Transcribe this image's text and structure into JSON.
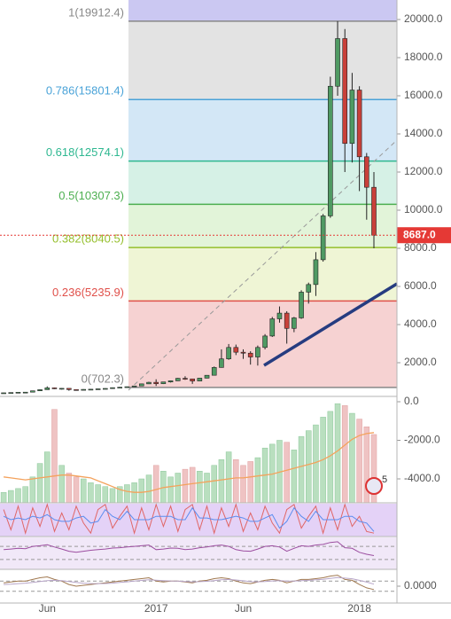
{
  "chart_data": [
    {
      "type": "candlestick",
      "categories": [
        null,
        null,
        null,
        null,
        null,
        null,
        "Jun",
        null,
        null,
        null,
        null,
        null,
        null,
        null,
        null,
        null,
        null,
        null,
        null,
        null,
        null,
        "2017",
        null,
        null,
        null,
        null,
        null,
        null,
        null,
        null,
        null,
        null,
        null,
        "Jun",
        null,
        null,
        null,
        null,
        null,
        null,
        null,
        null,
        null,
        null,
        null,
        null,
        null,
        null,
        null,
        "2018",
        null,
        null
      ],
      "open": [
        415,
        420,
        435,
        450,
        455,
        525,
        585,
        680,
        650,
        655,
        590,
        575,
        600,
        610,
        630,
        650,
        690,
        715,
        740,
        780,
        890,
        970,
        900,
        990,
        1050,
        1180,
        1150,
        1040,
        1190,
        1340,
        1750,
        2200,
        2800,
        2550,
        2500,
        2300,
        2800,
        3400,
        4300,
        4600,
        3800,
        4350,
        5700,
        6100,
        7400,
        9700,
        16500,
        19000,
        13500,
        16300,
        12800,
        11200
      ],
      "high": [
        425,
        440,
        455,
        460,
        530,
        600,
        760,
        700,
        670,
        660,
        600,
        610,
        620,
        640,
        660,
        700,
        730,
        750,
        790,
        900,
        1000,
        1130,
        1000,
        1060,
        1200,
        1290,
        1160,
        1200,
        1350,
        1800,
        2700,
        2980,
        2950,
        2700,
        2600,
        2900,
        3500,
        4400,
        4950,
        4700,
        4400,
        5800,
        6200,
        7800,
        9800,
        17000,
        19912.4,
        19500,
        17200,
        16500,
        13000,
        12000
      ],
      "low": [
        410,
        415,
        430,
        440,
        450,
        520,
        580,
        620,
        590,
        530,
        560,
        570,
        590,
        600,
        620,
        640,
        680,
        702.3,
        730,
        770,
        880,
        780,
        880,
        960,
        1040,
        1100,
        890,
        1030,
        1180,
        1330,
        1740,
        2150,
        2400,
        2200,
        1900,
        1850,
        2700,
        3350,
        4100,
        3000,
        3600,
        4300,
        5100,
        5500,
        7300,
        9600,
        16000,
        12000,
        12500,
        11000,
        9500,
        8000
      ],
      "close": [
        420,
        435,
        450,
        455,
        525,
        585,
        680,
        650,
        655,
        590,
        575,
        600,
        610,
        630,
        650,
        690,
        715,
        740,
        780,
        890,
        970,
        900,
        990,
        1050,
        1180,
        1150,
        1040,
        1190,
        1340,
        1750,
        2200,
        2800,
        2550,
        2500,
        2300,
        2800,
        3400,
        4300,
        4600,
        3800,
        4350,
        5700,
        6100,
        7400,
        9700,
        16500,
        19000,
        13500,
        16300,
        12800,
        11200,
        8687
      ],
      "up_color": "#4f9a63",
      "down_color": "#c9403a",
      "ylim": [
        232,
        21023
      ],
      "yticks": [
        {
          "value": 2000,
          "label": "2000.0"
        },
        {
          "value": 4000,
          "label": "4000.0"
        },
        {
          "value": 6000,
          "label": "6000.0"
        },
        {
          "value": 8000,
          "label": "8000.0"
        },
        {
          "value": 10000,
          "label": "10000.0"
        },
        {
          "value": 12000,
          "label": "12000.0"
        },
        {
          "value": 14000,
          "label": "14000.0"
        },
        {
          "value": 16000,
          "label": "16000.0"
        },
        {
          "value": 18000,
          "label": "18000.0"
        },
        {
          "value": 20000,
          "label": "20000.0"
        }
      ],
      "last_price": {
        "value": 8687,
        "label": "8687.0",
        "color": "#e53935"
      },
      "fib_above_fill": "#cbc8f2",
      "fib": [
        {
          "label": "1(19912.4)",
          "value": 19912.4,
          "color": "#888888",
          "fill": "#e3e3e3"
        },
        {
          "label": "0.786(15801.4)",
          "value": 15801.4,
          "color": "#4aa3d8",
          "fill": "#d3e7f6"
        },
        {
          "label": "0.618(12574.1)",
          "value": 12574.1,
          "color": "#2fb891",
          "fill": "#d6f1e6"
        },
        {
          "label": "0.5(10307.3)",
          "value": 10307.3,
          "color": "#4caf50",
          "fill": "#e2f4d9"
        },
        {
          "label": "0.382(8040.5)",
          "value": 8040.5,
          "color": "#95bf2c",
          "fill": "#eff5d5"
        },
        {
          "label": "0.236(5235.9)",
          "value": 5235.9,
          "color": "#e0504a",
          "fill": "#f6d2d2"
        },
        {
          "label": "0(702.3)",
          "value": 702.3,
          "color": "#888888",
          "fill": null
        }
      ]
    },
    {
      "type": "bar",
      "values": [
        -4700,
        -4600,
        -4500,
        -4400,
        -3900,
        -3200,
        -2600,
        -400,
        -3300,
        -3700,
        -3900,
        -4000,
        -4200,
        -4300,
        -4400,
        -4500,
        -4400,
        -4300,
        -4200,
        -4000,
        -3800,
        -3300,
        -3600,
        -3900,
        -3700,
        -3500,
        -3400,
        -3600,
        -3700,
        -3300,
        -3000,
        -2600,
        -3000,
        -3300,
        -3100,
        -2900,
        -2400,
        -2200,
        -2000,
        -2100,
        -2500,
        -1800,
        -1500,
        -1200,
        -800,
        -500,
        -100,
        -200,
        -600,
        -900,
        -1300,
        -1700
      ],
      "line": {
        "color": "#f4a25c",
        "values": [
          -3900,
          -3950,
          -4000,
          -4050,
          -4000,
          -3950,
          -3900,
          -3850,
          -3800,
          -3800,
          -3850,
          -3900,
          -3950,
          -4100,
          -4250,
          -4400,
          -4550,
          -4650,
          -4700,
          -4700,
          -4650,
          -4550,
          -4450,
          -4400,
          -4350,
          -4300,
          -4250,
          -4200,
          -4150,
          -4100,
          -4050,
          -4000,
          -3950,
          -3950,
          -3900,
          -3850,
          -3800,
          -3750,
          -3650,
          -3550,
          -3450,
          -3350,
          -3250,
          -3150,
          -3000,
          -2800,
          -2550,
          -2250,
          -1950,
          -1750,
          -1650,
          -1600
        ]
      },
      "up_color": "#b9dfbf",
      "down_color": "#efc3c3",
      "ylim": [
        -5241,
        276
      ],
      "yticks": [
        {
          "value": 0,
          "label": "0.0"
        },
        {
          "value": -2000,
          "label": "-2000.0"
        },
        {
          "value": -4000,
          "label": "-4000.0"
        }
      ],
      "badge": "5"
    },
    {
      "type": "line",
      "background": "#e4d2f7",
      "ylim": [
        0,
        100
      ],
      "series": [
        {
          "color": "#e06666",
          "values": [
            80,
            20,
            90,
            10,
            85,
            30,
            95,
            15,
            70,
            20,
            90,
            40,
            10,
            80,
            95,
            25,
            60,
            90,
            10,
            85,
            20,
            95,
            30,
            90,
            15,
            80,
            95,
            20,
            90,
            10,
            85,
            30,
            95,
            15,
            70,
            20,
            90,
            40,
            10,
            80,
            95,
            25,
            60,
            90,
            10,
            85,
            20,
            95,
            30,
            60,
            15,
            10
          ]
        },
        {
          "color": "#5b8def",
          "values": [
            60,
            50,
            55,
            50,
            60,
            55,
            65,
            50,
            45,
            45,
            55,
            60,
            40,
            45,
            80,
            60,
            50,
            75,
            50,
            50,
            50,
            60,
            60,
            60,
            50,
            50,
            85,
            55,
            55,
            50,
            50,
            55,
            60,
            55,
            45,
            45,
            55,
            65,
            25,
            45,
            85,
            60,
            45,
            75,
            50,
            50,
            50,
            60,
            60,
            45,
            40,
            15
          ]
        }
      ]
    },
    {
      "type": "line",
      "background": "#f1e8f8",
      "ylim": [
        0,
        100
      ],
      "levels": [
        70,
        30
      ],
      "series": [
        {
          "color": "#9c4ea0",
          "values": [
            60,
            62,
            64,
            63,
            70,
            72,
            75,
            68,
            62,
            55,
            52,
            55,
            58,
            60,
            62,
            65,
            66,
            68,
            70,
            72,
            74,
            60,
            62,
            65,
            64,
            60,
            62,
            66,
            68,
            72,
            74,
            70,
            60,
            56,
            55,
            62,
            70,
            72,
            68,
            55,
            64,
            72,
            70,
            74,
            76,
            82,
            84,
            66,
            64,
            52,
            46,
            42
          ]
        }
      ]
    },
    {
      "type": "line",
      "ylim": [
        -1,
        1
      ],
      "levels": [
        0.3,
        -0.3
      ],
      "yticks": [
        {
          "value": 0,
          "label": "0.0000"
        }
      ],
      "series": [
        {
          "color": "#a0784f",
          "values": [
            0.2,
            0.25,
            0.3,
            0.3,
            0.4,
            0.5,
            0.55,
            0.4,
            0.3,
            0.1,
            0,
            0.05,
            0.1,
            0.15,
            0.2,
            0.25,
            0.3,
            0.35,
            0.4,
            0.45,
            0.5,
            0.3,
            0.25,
            0.3,
            0.3,
            0.25,
            0.2,
            0.3,
            0.35,
            0.45,
            0.5,
            0.45,
            0.3,
            0.2,
            0.15,
            0.25,
            0.35,
            0.4,
            0.35,
            0.2,
            0.3,
            0.4,
            0.4,
            0.45,
            0.5,
            0.6,
            0.65,
            0.4,
            0.35,
            0.1,
            -0.1,
            -0.2
          ]
        },
        {
          "color": "#b8a6c8",
          "values": [
            0.1,
            0.12,
            0.15,
            0.18,
            0.22,
            0.28,
            0.33,
            0.35,
            0.33,
            0.28,
            0.22,
            0.18,
            0.16,
            0.15,
            0.16,
            0.18,
            0.22,
            0.26,
            0.3,
            0.34,
            0.38,
            0.36,
            0.33,
            0.31,
            0.3,
            0.28,
            0.26,
            0.27,
            0.29,
            0.33,
            0.38,
            0.4,
            0.37,
            0.32,
            0.27,
            0.26,
            0.28,
            0.31,
            0.33,
            0.3,
            0.3,
            0.33,
            0.35,
            0.38,
            0.41,
            0.46,
            0.51,
            0.48,
            0.44,
            0.35,
            0.24,
            0.12
          ]
        }
      ]
    }
  ]
}
